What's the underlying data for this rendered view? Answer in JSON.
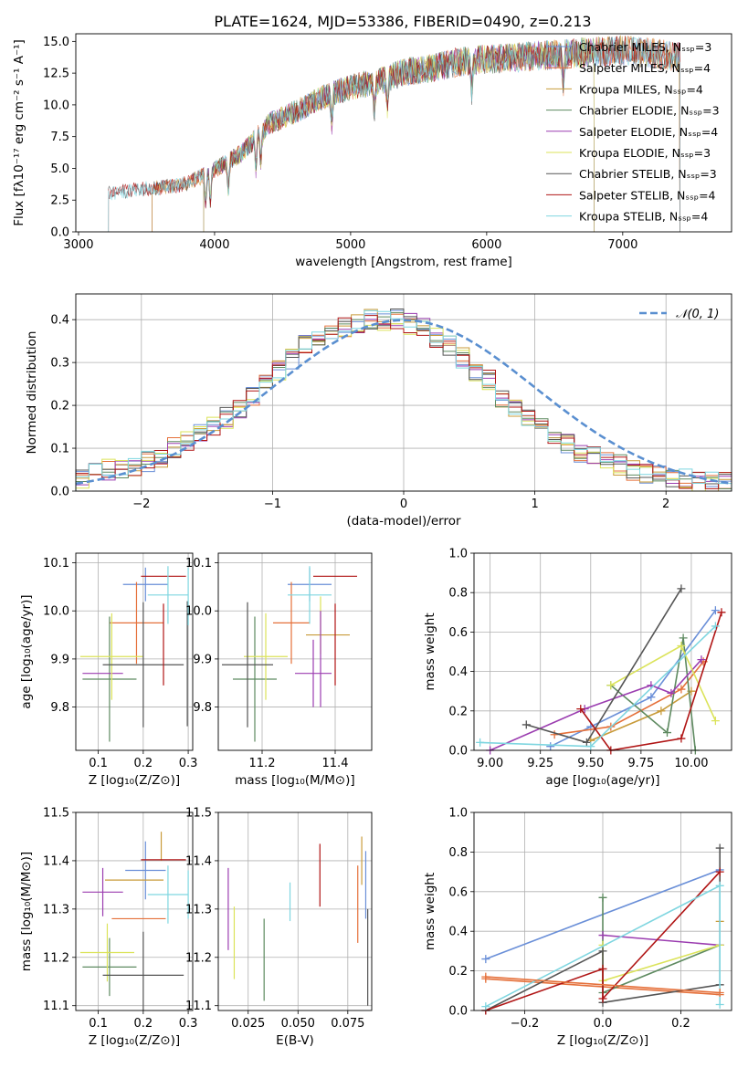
{
  "title": "PLATE=1624, MJD=53386, FIBERID=0490, z=0.213",
  "colors": {
    "Chabrier MILES": "#6a8fd8",
    "Salpeter MILES": "#e5703a",
    "Kroupa MILES": "#c89b3a",
    "Chabrier ELODIE": "#5e8a60",
    "Salpeter ELODIE": "#9b3db0",
    "Kroupa ELODIE": "#dbe35a",
    "Chabrier STELIB": "#555555",
    "Salpeter STELIB": "#b01515",
    "Kroupa STELIB": "#7fd6e0",
    "normal": "#5a8fd0"
  },
  "chart_data": [
    {
      "type": "line",
      "xlabel": "wavelength [Angstrom, rest frame]",
      "ylabel": "Flux [fλ10⁻¹⁷ erg cm⁻² s⁻¹ A⁻¹]",
      "xlim": [
        2980,
        7800
      ],
      "ylim": [
        0,
        15.6
      ],
      "xticks": [
        3000,
        4000,
        5000,
        6000,
        7000
      ],
      "yticks": [
        0.0,
        2.5,
        5.0,
        7.5,
        10.0,
        12.5,
        15.0
      ],
      "grid": false,
      "legend_position": "right",
      "x": [
        3200,
        3400,
        3600,
        3800,
        4000,
        4200,
        4400,
        4600,
        4800,
        5000,
        5200,
        5400,
        5600,
        5800,
        6000,
        6200,
        6400,
        6600,
        6800,
        7000,
        7200,
        7400
      ],
      "series": [
        {
          "name": "Chabrier MILES, Nₛₛₚ=3",
          "start": 3540,
          "end": 7420
        },
        {
          "name": "Salpeter MILES, Nₛₛₚ=4",
          "start": 3540,
          "end": 7420
        },
        {
          "name": "Kroupa MILES, Nₛₛₚ=4",
          "start": 3540,
          "end": 7420
        },
        {
          "name": "Chabrier ELODIE, Nₛₛₚ=3",
          "start": 3920,
          "end": 6790
        },
        {
          "name": "Salpeter ELODIE, Nₛₛₚ=4",
          "start": 3920,
          "end": 6790
        },
        {
          "name": "Kroupa ELODIE, Nₛₛₚ=3",
          "start": 3920,
          "end": 6790
        },
        {
          "name": "Chabrier STELIB, Nₛₛₚ=3",
          "start": 3220,
          "end": 7420
        },
        {
          "name": "Salpeter STELIB, Nₛₛₚ=4",
          "start": 3220,
          "end": 7420
        },
        {
          "name": "Kroupa STELIB, Nₛₛₚ=4",
          "start": 3220,
          "end": 7420
        }
      ],
      "continuum": [
        3.0,
        3.3,
        3.5,
        3.8,
        4.9,
        6.2,
        8.5,
        9.5,
        10.6,
        11.4,
        11.8,
        12.6,
        12.9,
        13.4,
        13.6,
        13.7,
        13.9,
        14.0,
        14.2,
        14.3,
        14.1,
        13.8
      ]
    },
    {
      "type": "bar",
      "xlabel": "(data-model)/error",
      "ylabel": "Normed distribution",
      "xlim": [
        -2.5,
        2.5
      ],
      "ylim": [
        0,
        0.46
      ],
      "xticks": [
        -2,
        -1,
        0,
        1,
        2
      ],
      "yticks": [
        0.0,
        0.1,
        0.2,
        0.3,
        0.4
      ],
      "grid": true,
      "legend": "𝒩(0, 1)",
      "legend_position": "top-right",
      "bin_width": 0.1,
      "histogram": [
        0.03,
        0.04,
        0.05,
        0.05,
        0.06,
        0.07,
        0.08,
        0.1,
        0.12,
        0.13,
        0.15,
        0.17,
        0.19,
        0.22,
        0.26,
        0.28,
        0.31,
        0.34,
        0.36,
        0.37,
        0.38,
        0.39,
        0.4,
        0.4,
        0.4,
        0.39,
        0.38,
        0.36,
        0.34,
        0.31,
        0.28,
        0.26,
        0.22,
        0.19,
        0.17,
        0.15,
        0.13,
        0.11,
        0.09,
        0.08,
        0.07,
        0.06,
        0.05,
        0.04,
        0.04,
        0.03,
        0.03,
        0.02,
        0.02,
        0.02
      ],
      "normal_mean": 0,
      "normal_sigma": 1
    },
    {
      "type": "scatter",
      "panel": "age vs Z",
      "xlabel": "Z [log₁₀(Z/Z⊙)]",
      "ylabel": "age  [log₁₀(age/yr)]",
      "xlim": [
        0.05,
        0.31
      ],
      "ylim": [
        9.71,
        10.12
      ],
      "xticks": [
        0.1,
        0.2,
        0.3
      ],
      "yticks": [
        9.8,
        9.9,
        10.0,
        10.1
      ],
      "grid": true,
      "points": [
        {
          "c": "Chabrier MILES",
          "x": 0.205,
          "xe": 0.05,
          "y": 10.055,
          "ye": 0.035
        },
        {
          "c": "Salpeter MILES",
          "x": 0.185,
          "xe": 0.06,
          "y": 9.975,
          "ye": 0.085
        },
        {
          "c": "Kroupa MILES",
          "x": 0.26,
          "xe": 0.0,
          "y": 9.97,
          "ye": 0.0
        },
        {
          "c": "Chabrier ELODIE",
          "x": 0.125,
          "xe": 0.06,
          "y": 9.858,
          "ye": 0.13
        },
        {
          "c": "Salpeter ELODIE",
          "x": 0.11,
          "xe": 0.045,
          "y": 9.87,
          "ye": 0.0
        },
        {
          "c": "Kroupa ELODIE",
          "x": 0.13,
          "xe": 0.07,
          "y": 9.905,
          "ye": 0.09
        },
        {
          "c": "Chabrier STELIB",
          "x": 0.2,
          "xe": 0.09,
          "y": 9.888,
          "ye": 0.13
        },
        {
          "c": "Salpeter STELIB",
          "x": 0.245,
          "xe": 0.05,
          "y": 10.072,
          "ye": 0.0
        },
        {
          "c": "Kroupa STELIB",
          "x": 0.255,
          "xe": 0.045,
          "y": 10.033,
          "ye": 0.06
        },
        {
          "c": "Salpeter STELIB",
          "x": 0.245,
          "xe": 0.0,
          "y": 9.93,
          "ye": 0.085
        },
        {
          "c": "Chabrier STELIB",
          "x": 0.298,
          "xe": 0.0,
          "y": 9.89,
          "ye": 0.13
        },
        {
          "c": "Kroupa STELIB",
          "x": 0.3,
          "xe": 0.0,
          "y": 10.03,
          "ye": 0.06
        }
      ]
    },
    {
      "type": "scatter",
      "panel": "age vs mass",
      "xlabel": "mass [log₁₀(M/M⊙)]",
      "ylabel": "",
      "xlim": [
        11.08,
        11.5
      ],
      "ylim": [
        9.71,
        10.12
      ],
      "xticks": [
        11.2,
        11.4
      ],
      "yticks": [
        9.8,
        9.9,
        10.0,
        10.1
      ],
      "grid": true,
      "points": [
        {
          "c": "Chabrier MILES",
          "x": 11.33,
          "xe": 0.06,
          "y": 10.055,
          "ye": 0.035
        },
        {
          "c": "Salpeter MILES",
          "x": 11.28,
          "xe": 0.05,
          "y": 9.975,
          "ye": 0.085
        },
        {
          "c": "Kroupa MILES",
          "x": 11.38,
          "xe": 0.06,
          "y": 9.95,
          "ye": 0.0
        },
        {
          "c": "Chabrier ELODIE",
          "x": 11.18,
          "xe": 0.06,
          "y": 9.858,
          "ye": 0.13
        },
        {
          "c": "Salpeter ELODIE",
          "x": 11.34,
          "xe": 0.05,
          "y": 9.87,
          "ye": 0.07
        },
        {
          "c": "Kroupa ELODIE",
          "x": 11.21,
          "xe": 0.06,
          "y": 9.905,
          "ye": 0.09
        },
        {
          "c": "Chabrier STELIB",
          "x": 11.16,
          "xe": 0.07,
          "y": 9.888,
          "ye": 0.13
        },
        {
          "c": "Salpeter STELIB",
          "x": 11.4,
          "xe": 0.06,
          "y": 10.072,
          "ye": 0.0
        },
        {
          "c": "Kroupa STELIB",
          "x": 11.33,
          "xe": 0.06,
          "y": 10.033,
          "ye": 0.06
        },
        {
          "c": "Salpeter STELIB",
          "x": 11.4,
          "xe": 0.0,
          "y": 9.93,
          "ye": 0.085
        },
        {
          "c": "Kroupa ELODIE",
          "x": 11.36,
          "xe": 0.0,
          "y": 9.97,
          "ye": 0.06
        },
        {
          "c": "Salpeter ELODIE",
          "x": 11.36,
          "xe": 0.0,
          "y": 9.9,
          "ye": 0.1
        }
      ]
    },
    {
      "type": "line",
      "panel": "mass weight vs age",
      "xlabel": "age  [log₁₀(age/yr)]",
      "ylabel": "mass weight",
      "xlim": [
        8.92,
        10.2
      ],
      "ylim": [
        0,
        1.0
      ],
      "xticks": [
        9.0,
        9.25,
        9.5,
        9.75,
        10.0
      ],
      "yticks": [
        0.0,
        0.2,
        0.4,
        0.6,
        0.8,
        1.0
      ],
      "grid": true,
      "series": [
        {
          "c": "Chabrier MILES",
          "x": [
            9.3,
            9.5,
            9.8,
            10.12
          ],
          "y": [
            0.02,
            0.12,
            0.27,
            0.71
          ]
        },
        {
          "c": "Salpeter MILES",
          "x": [
            9.32,
            9.6,
            9.95,
            10.06
          ],
          "y": [
            0.08,
            0.12,
            0.31,
            0.45
          ]
        },
        {
          "c": "Kroupa MILES",
          "x": [
            9.5,
            9.85,
            10.0
          ],
          "y": [
            0.05,
            0.2,
            0.3
          ]
        },
        {
          "c": "Chabrier ELODIE",
          "x": [
            9.6,
            9.88,
            9.96,
            10.02
          ],
          "y": [
            0.33,
            0.09,
            0.57,
            0.0
          ]
        },
        {
          "c": "Salpeter ELODIE",
          "x": [
            9.0,
            9.47,
            9.8,
            9.9,
            10.05
          ],
          "y": [
            0.0,
            0.21,
            0.33,
            0.29,
            0.46
          ]
        },
        {
          "c": "Kroupa ELODIE",
          "x": [
            9.6,
            9.95,
            10.12
          ],
          "y": [
            0.33,
            0.53,
            0.15
          ]
        },
        {
          "c": "Chabrier STELIB",
          "x": [
            9.18,
            9.48,
            9.95
          ],
          "y": [
            0.13,
            0.04,
            0.82
          ]
        },
        {
          "c": "Salpeter STELIB",
          "x": [
            9.45,
            9.6,
            9.95,
            10.15
          ],
          "y": [
            0.21,
            0.0,
            0.06,
            0.7
          ]
        },
        {
          "c": "Kroupa STELIB",
          "x": [
            8.95,
            9.5,
            10.12
          ],
          "y": [
            0.04,
            0.02,
            0.63
          ]
        }
      ]
    },
    {
      "type": "scatter",
      "panel": "mass vs Z",
      "xlabel": "Z [log₁₀(Z/Z⊙)]",
      "ylabel": "mass [log₁₀(M/M⊙)]",
      "xlim": [
        0.05,
        0.31
      ],
      "ylim": [
        11.09,
        11.5
      ],
      "xticks": [
        0.1,
        0.2,
        0.3
      ],
      "yticks": [
        11.1,
        11.2,
        11.3,
        11.4,
        11.5
      ],
      "grid": true,
      "points": [
        {
          "c": "Chabrier MILES",
          "x": 0.205,
          "xe": 0.045,
          "y": 11.38,
          "ye": 0.06
        },
        {
          "c": "Salpeter MILES",
          "x": 0.19,
          "xe": 0.06,
          "y": 11.28,
          "ye": 0.0
        },
        {
          "c": "Kroupa MILES",
          "x": 0.24,
          "xe": 0.0,
          "y": 11.43,
          "ye": 0.03
        },
        {
          "c": "Chabrier ELODIE",
          "x": 0.125,
          "xe": 0.06,
          "y": 11.18,
          "ye": 0.06
        },
        {
          "c": "Salpeter ELODIE",
          "x": 0.11,
          "xe": 0.045,
          "y": 11.335,
          "ye": 0.05
        },
        {
          "c": "Kroupa ELODIE",
          "x": 0.12,
          "xe": 0.06,
          "y": 11.21,
          "ye": 0.06
        },
        {
          "c": "Chabrier STELIB",
          "x": 0.2,
          "xe": 0.09,
          "y": 11.163,
          "ye": 0.09
        },
        {
          "c": "Salpeter STELIB",
          "x": 0.245,
          "xe": 0.05,
          "y": 11.402,
          "ye": 0.0
        },
        {
          "c": "Kroupa STELIB",
          "x": 0.255,
          "xe": 0.045,
          "y": 11.33,
          "ye": 0.06
        },
        {
          "c": "Kroupa MILES",
          "x": 0.18,
          "xe": 0.065,
          "y": 11.36,
          "ye": 0.0
        },
        {
          "c": "Kroupa STELIB",
          "x": 0.3,
          "xe": 0.0,
          "y": 11.33,
          "ye": 0.05
        }
      ]
    },
    {
      "type": "scatter",
      "panel": "mass vs E(B-V)",
      "xlabel": "E(B-V)",
      "ylabel": "",
      "xlim": [
        0.01,
        0.087
      ],
      "ylim": [
        11.09,
        11.5
      ],
      "xticks": [
        0.025,
        0.05,
        0.075
      ],
      "yticks": [
        11.1,
        11.2,
        11.3,
        11.4,
        11.5
      ],
      "grid": true,
      "points": [
        {
          "c": "Salpeter ELODIE",
          "x": 0.015,
          "xe": 0.0,
          "y": 11.3,
          "ye": 0.085
        },
        {
          "c": "Kroupa ELODIE",
          "x": 0.018,
          "xe": 0.0,
          "y": 11.23,
          "ye": 0.075
        },
        {
          "c": "Chabrier ELODIE",
          "x": 0.033,
          "xe": 0.0,
          "y": 11.195,
          "ye": 0.085
        },
        {
          "c": "Kroupa STELIB",
          "x": 0.046,
          "xe": 0.0,
          "y": 11.315,
          "ye": 0.04
        },
        {
          "c": "Salpeter STELIB",
          "x": 0.061,
          "xe": 0.0,
          "y": 11.37,
          "ye": 0.065
        },
        {
          "c": "Salpeter MILES",
          "x": 0.08,
          "xe": 0.0,
          "y": 11.31,
          "ye": 0.08
        },
        {
          "c": "Kroupa MILES",
          "x": 0.082,
          "xe": 0.0,
          "y": 11.4,
          "ye": 0.05
        },
        {
          "c": "Chabrier MILES",
          "x": 0.084,
          "xe": 0.0,
          "y": 11.35,
          "ye": 0.07
        },
        {
          "c": "Chabrier STELIB",
          "x": 0.085,
          "xe": 0.0,
          "y": 11.2,
          "ye": 0.1
        }
      ]
    },
    {
      "type": "line",
      "panel": "mass weight vs Z",
      "xlabel": "Z [log₁₀(Z/Z⊙)]",
      "ylabel": "mass weight",
      "xlim": [
        -0.33,
        0.33
      ],
      "ylim": [
        0,
        1.0
      ],
      "xticks": [
        -0.2,
        0.0,
        0.2
      ],
      "yticks": [
        0.0,
        0.2,
        0.4,
        0.6,
        0.8,
        1.0
      ],
      "grid": true,
      "series": [
        {
          "c": "Chabrier MILES",
          "x": [
            -0.3,
            0.3
          ],
          "y": [
            0.26,
            0.71
          ]
        },
        {
          "c": "Salpeter MILES",
          "x": [
            -0.3,
            0.3
          ],
          "y": [
            0.16,
            0.08
          ]
        },
        {
          "c": "Kroupa MILES",
          "x": [
            0.3
          ],
          "y": [
            0.45
          ]
        },
        {
          "c": "Chabrier ELODIE",
          "x": [
            0.0,
            0.0,
            0.3
          ],
          "y": [
            0.57,
            0.09,
            0.33
          ]
        },
        {
          "c": "Salpeter ELODIE",
          "x": [
            0.0,
            0.3
          ],
          "y": [
            0.38,
            0.33
          ]
        },
        {
          "c": "Kroupa ELODIE",
          "x": [
            0.0,
            0.0,
            0.3
          ],
          "y": [
            0.33,
            0.15,
            0.33
          ]
        },
        {
          "c": "Chabrier STELIB",
          "x": [
            -0.3,
            0.0,
            0.0,
            0.3,
            0.3
          ],
          "y": [
            0.0,
            0.3,
            0.04,
            0.13,
            0.82
          ]
        },
        {
          "c": "Salpeter STELIB",
          "x": [
            -0.3,
            0.0,
            0.0,
            0.3
          ],
          "y": [
            0.0,
            0.21,
            0.06,
            0.7
          ]
        },
        {
          "c": "Kroupa STELIB",
          "x": [
            -0.3,
            0.3,
            0.3
          ],
          "y": [
            0.02,
            0.63,
            0.03
          ]
        },
        {
          "c": "Salpeter MILES",
          "x": [
            -0.3,
            0.3
          ],
          "y": [
            0.17,
            0.09
          ]
        }
      ]
    }
  ]
}
